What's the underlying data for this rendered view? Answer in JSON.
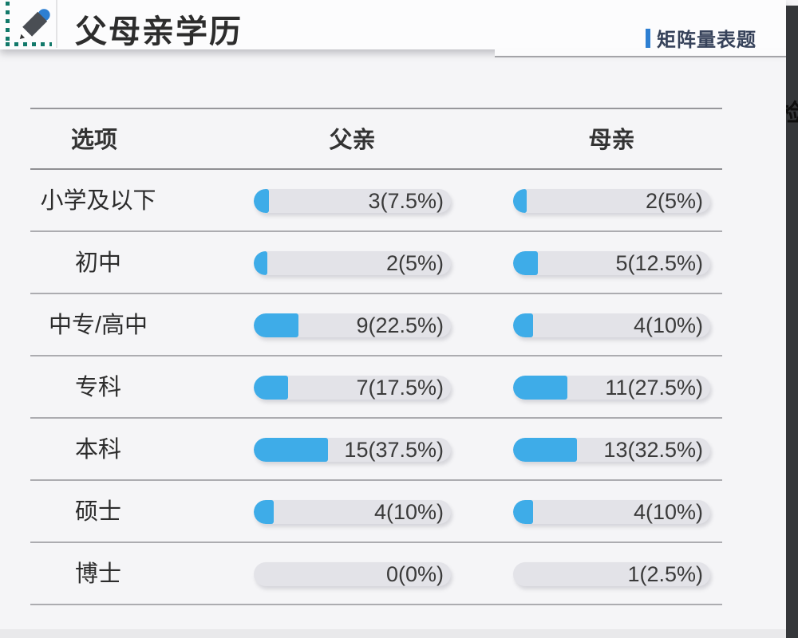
{
  "header": {
    "title": "父母亲学历",
    "question_type_label": "矩阵量表题",
    "accent_color": "#2d7fd2"
  },
  "edge": {
    "partial_char": "检"
  },
  "chart_data": {
    "type": "bar",
    "title": "父母亲学历",
    "subtitle": "矩阵量表题",
    "columns": [
      "选项",
      "父亲",
      "母亲"
    ],
    "categories": [
      "小学及以下",
      "初中",
      "中专/高中",
      "专科",
      "本科",
      "硕士",
      "博士"
    ],
    "series": [
      {
        "name": "父亲",
        "counts": [
          3,
          2,
          9,
          7,
          15,
          4,
          0
        ],
        "percents": [
          7.5,
          5,
          22.5,
          17.5,
          37.5,
          10,
          0
        ]
      },
      {
        "name": "母亲",
        "counts": [
          2,
          5,
          4,
          11,
          13,
          4,
          1
        ],
        "percents": [
          5,
          12.5,
          10,
          27.5,
          32.5,
          10,
          2.5
        ]
      }
    ],
    "bar_color": "#3eace8",
    "track_color": "#e3e3e8",
    "legend_position": "none",
    "grid": false,
    "value_format": "count(percent%)",
    "rows": [
      {
        "option": "小学及以下",
        "father": {
          "count": 3,
          "pct": 7.5,
          "label": "3(7.5%)"
        },
        "mother": {
          "count": 2,
          "pct": 5,
          "label": "2(5%)"
        }
      },
      {
        "option": "初中",
        "father": {
          "count": 2,
          "pct": 5,
          "label": "2(5%)"
        },
        "mother": {
          "count": 5,
          "pct": 12.5,
          "label": "5(12.5%)"
        }
      },
      {
        "option": "中专/高中",
        "father": {
          "count": 9,
          "pct": 22.5,
          "label": "9(22.5%)"
        },
        "mother": {
          "count": 4,
          "pct": 10,
          "label": "4(10%)"
        }
      },
      {
        "option": "专科",
        "father": {
          "count": 7,
          "pct": 17.5,
          "label": "7(17.5%)"
        },
        "mother": {
          "count": 11,
          "pct": 27.5,
          "label": "11(27.5%)"
        }
      },
      {
        "option": "本科",
        "father": {
          "count": 15,
          "pct": 37.5,
          "label": "15(37.5%)"
        },
        "mother": {
          "count": 13,
          "pct": 32.5,
          "label": "13(32.5%)"
        }
      },
      {
        "option": "硕士",
        "father": {
          "count": 4,
          "pct": 10,
          "label": "4(10%)"
        },
        "mother": {
          "count": 4,
          "pct": 10,
          "label": "4(10%)"
        }
      },
      {
        "option": "博士",
        "father": {
          "count": 0,
          "pct": 0,
          "label": "0(0%)"
        },
        "mother": {
          "count": 1,
          "pct": 2.5,
          "label": "1(2.5%)"
        }
      }
    ]
  }
}
